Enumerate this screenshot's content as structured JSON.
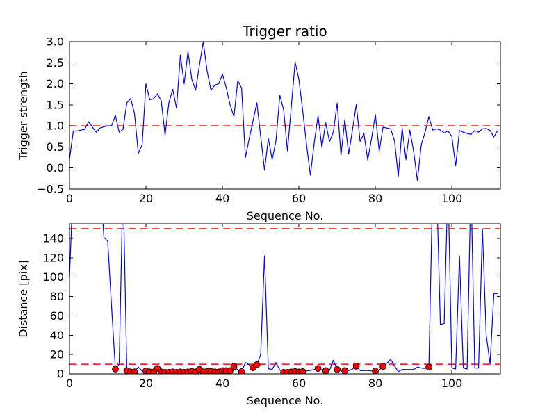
{
  "figure": {
    "background": "#ffffff",
    "line_color": "#0000ff",
    "threshold_color": "#ff0000",
    "marker_face": "#ff0000",
    "marker_edge": "#000000",
    "axes_color": "#000000"
  },
  "chart_data": [
    {
      "type": "line",
      "title": "Trigger ratio",
      "xlabel": "Sequence No.",
      "ylabel": "Trigger strength",
      "xlim": [
        0,
        112.7
      ],
      "ylim": [
        -0.5,
        3.0
      ],
      "xticks": [
        0,
        20,
        40,
        60,
        80,
        100
      ],
      "xtick_labels": [
        "0",
        "20",
        "40",
        "60",
        "80",
        "100"
      ],
      "yticks": [
        -0.5,
        0.0,
        0.5,
        1.0,
        1.5,
        2.0,
        2.5,
        3.0
      ],
      "ytick_labels": [
        "−0.5",
        "0.0",
        "0.5",
        "1.0",
        "1.5",
        "2.0",
        "2.5",
        "3.0"
      ],
      "grid": false,
      "legend": null,
      "thresholds": [
        {
          "name": "trigger-ratio-threshold",
          "y": 1.0,
          "color": "#ff0000",
          "style": "dashed"
        }
      ],
      "series": [
        {
          "name": "trigger-strength",
          "color": "#0000ff",
          "x_start": 0,
          "x_step": 1,
          "values": [
            0.2,
            0.88,
            0.88,
            0.9,
            0.92,
            1.1,
            0.97,
            0.85,
            0.95,
            0.98,
            1.0,
            1.0,
            1.25,
            0.85,
            0.92,
            1.55,
            1.65,
            1.3,
            0.35,
            0.55,
            2.0,
            1.62,
            1.65,
            1.76,
            1.6,
            0.78,
            1.55,
            1.87,
            1.42,
            2.68,
            2.0,
            2.77,
            2.1,
            1.85,
            2.45,
            3.0,
            2.3,
            1.85,
            1.97,
            2.0,
            2.23,
            1.9,
            1.5,
            1.22,
            2.07,
            1.9,
            0.25,
            0.7,
            1.12,
            1.55,
            0.75,
            -0.05,
            0.7,
            0.2,
            0.65,
            1.73,
            1.38,
            0.41,
            1.45,
            2.52,
            2.1,
            1.35,
            0.55,
            -0.17,
            0.6,
            1.24,
            0.49,
            1.07,
            0.63,
            0.85,
            1.54,
            0.3,
            1.15,
            0.33,
            0.9,
            1.51,
            0.63,
            0.82,
            0.19,
            0.7,
            1.27,
            0.4,
            0.97,
            0.95,
            0.93,
            0.65,
            -0.2,
            0.95,
            0.2,
            0.9,
            0.4,
            -0.3,
            0.55,
            0.85,
            1.22,
            0.9,
            0.93,
            0.9,
            0.83,
            0.88,
            0.75,
            0.05,
            0.89,
            0.85,
            0.82,
            0.8,
            0.89,
            0.85,
            0.93,
            0.94,
            0.89,
            0.74,
            0.89
          ]
        }
      ]
    },
    {
      "type": "line",
      "title": "",
      "xlabel": "Sequence No.",
      "ylabel": "Distance [pix]",
      "xlim": [
        0,
        112.7
      ],
      "ylim": [
        0,
        155
      ],
      "xticks": [
        0,
        20,
        40,
        60,
        80,
        100
      ],
      "xtick_labels": [
        "0",
        "20",
        "40",
        "60",
        "80",
        "100"
      ],
      "yticks": [
        0,
        20,
        40,
        60,
        80,
        100,
        120,
        140
      ],
      "ytick_labels": [
        "0",
        "20",
        "40",
        "60",
        "80",
        "100",
        "120",
        "140"
      ],
      "grid": false,
      "legend": null,
      "off_scale_value": 200,
      "thresholds": [
        {
          "name": "distance-upper-threshold",
          "y": 150,
          "color": "#ff0000",
          "style": "dashed"
        },
        {
          "name": "distance-lower-threshold",
          "y": 10,
          "color": "#ff0000",
          "style": "dashed"
        }
      ],
      "series": [
        {
          "name": "distance",
          "color": "#0000ff",
          "x_start": 0,
          "x_step": 1,
          "values": [
            100,
            200,
            200,
            200,
            200,
            200,
            200,
            200,
            200,
            141,
            137,
            70,
            5,
            10,
            200,
            3.4,
            2,
            2,
            7,
            3,
            3,
            2,
            2,
            5.5,
            2,
            1.5,
            1.5,
            2,
            1.5,
            2,
            1.5,
            2,
            2.5,
            2,
            4.6,
            2,
            2.5,
            2.5,
            2,
            2,
            3.4,
            3.4,
            3.4,
            7.7,
            4,
            2.2,
            11.8,
            9.4,
            6.3,
            9.4,
            20,
            122,
            5.3,
            4.6,
            11.8,
            3.9,
            1.5,
            1.5,
            2,
            2.4,
            2,
            2.4,
            3,
            3.5,
            4.5,
            5.7,
            4,
            3.3,
            3.5,
            14,
            4.5,
            3.5,
            3.3,
            3.3,
            5,
            8,
            3.5,
            3.3,
            3.5,
            3,
            3,
            4,
            7.7,
            11,
            15,
            8,
            2.2,
            4.5,
            4.5,
            4.5,
            4.5,
            7,
            6,
            5.5,
            7,
            200,
            200,
            51,
            52,
            200,
            6,
            5,
            122,
            6,
            5,
            200,
            6,
            6,
            150,
            40,
            10.5,
            83,
            83
          ]
        }
      ],
      "markers": {
        "name": "triggered-points",
        "face": "#ff0000",
        "edge": "#000000",
        "points": [
          [
            12,
            5
          ],
          [
            15,
            3.4
          ],
          [
            16,
            2
          ],
          [
            17,
            2
          ],
          [
            20,
            3
          ],
          [
            21,
            2
          ],
          [
            22,
            2
          ],
          [
            23,
            5.5
          ],
          [
            24,
            2
          ],
          [
            25,
            1.5
          ],
          [
            26,
            1.5
          ],
          [
            27,
            2
          ],
          [
            28,
            1.5
          ],
          [
            29,
            2
          ],
          [
            30,
            1.5
          ],
          [
            31,
            2
          ],
          [
            32,
            2.5
          ],
          [
            33,
            2
          ],
          [
            34,
            4.6
          ],
          [
            35,
            2
          ],
          [
            36,
            2.5
          ],
          [
            37,
            2.5
          ],
          [
            38,
            2
          ],
          [
            39,
            2
          ],
          [
            40,
            3.4
          ],
          [
            41,
            3.4
          ],
          [
            42,
            3.4
          ],
          [
            43,
            7.7
          ],
          [
            45,
            2.2
          ],
          [
            48,
            6.3
          ],
          [
            49,
            9.4
          ],
          [
            56,
            1.5
          ],
          [
            57,
            1.5
          ],
          [
            58,
            2
          ],
          [
            59,
            2.4
          ],
          [
            60,
            2
          ],
          [
            61,
            2.4
          ],
          [
            65,
            5.7
          ],
          [
            67,
            3.3
          ],
          [
            70,
            4.5
          ],
          [
            72,
            3.3
          ],
          [
            75,
            8
          ],
          [
            80,
            3
          ],
          [
            82,
            7.7
          ],
          [
            94,
            7
          ]
        ]
      }
    }
  ]
}
